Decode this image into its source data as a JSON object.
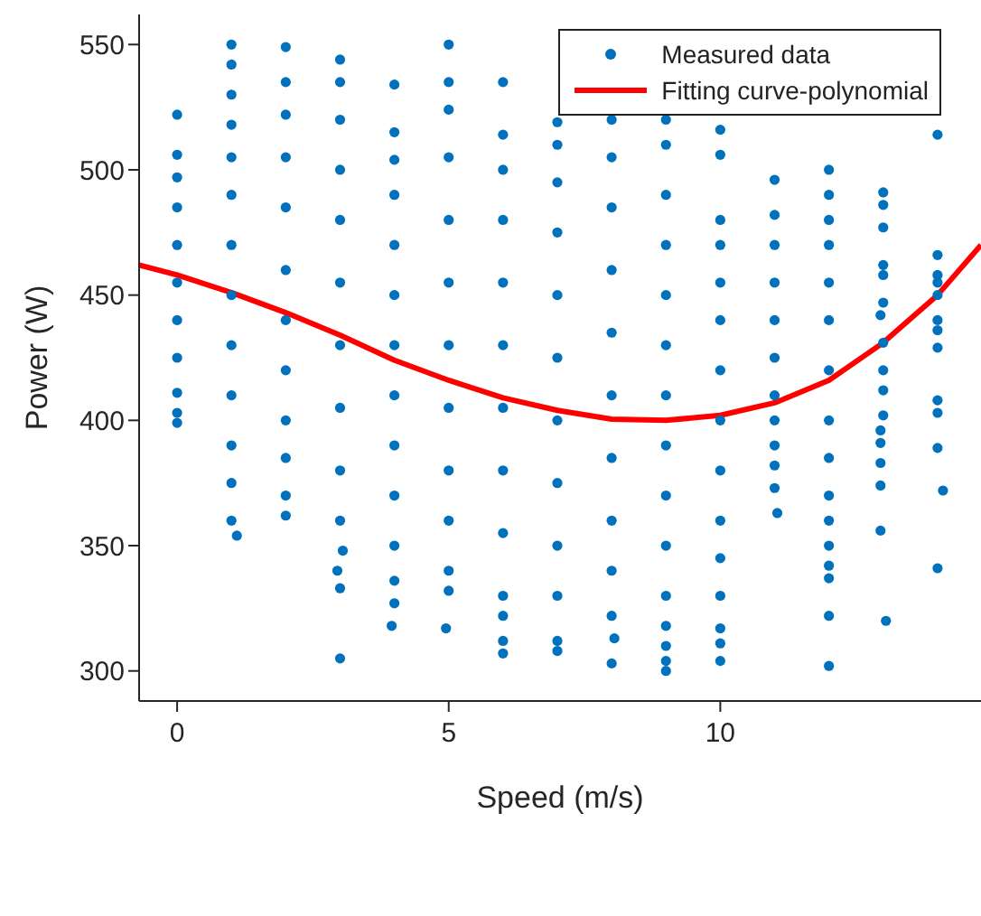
{
  "chart_data": {
    "type": "scatter",
    "xlabel": "Speed (m/s)",
    "ylabel": "Power (W)",
    "xlim": [
      -0.7,
      14.8
    ],
    "xticks": [
      0,
      5,
      10
    ],
    "ylim": [
      288,
      562
    ],
    "yticks": [
      300,
      350,
      400,
      450,
      500,
      550
    ],
    "legend": "top right",
    "line_style": "solid",
    "series": [
      {
        "name": "Measured data",
        "marker": "circle",
        "color": "#0072bd",
        "x": [
          0,
          0,
          0,
          0,
          0,
          0,
          0,
          0,
          0,
          0,
          0,
          1,
          1,
          1,
          1,
          1,
          1,
          1,
          1,
          1,
          1,
          1,
          1,
          1,
          1.1,
          2,
          2,
          2,
          2,
          2,
          2,
          2,
          2,
          2,
          2,
          2,
          2,
          3,
          3,
          3,
          3,
          3,
          3,
          3,
          3,
          3,
          3,
          3.05,
          2.95,
          3,
          3,
          4,
          4,
          4,
          4,
          4,
          4,
          4,
          4,
          4,
          4,
          4,
          4,
          4,
          3.95,
          5,
          5,
          5,
          5,
          5,
          5,
          5,
          5,
          5,
          5,
          5,
          5,
          4.95,
          6,
          6,
          6,
          6,
          6,
          6,
          6,
          6,
          6,
          6,
          6,
          6,
          6,
          7,
          7,
          7,
          7,
          7,
          7,
          7,
          7,
          7,
          7,
          7,
          7,
          8,
          8,
          8,
          8,
          8,
          8,
          8,
          8,
          8,
          8,
          8.05,
          8,
          9,
          9,
          9,
          9,
          9,
          9,
          9,
          9,
          9,
          9,
          9,
          9,
          9,
          9,
          9,
          10,
          10,
          10,
          10,
          10,
          10,
          10,
          10,
          10,
          10,
          10,
          10,
          10,
          10,
          10,
          11,
          11,
          11,
          11,
          11,
          11,
          11,
          11,
          11,
          11,
          11,
          11.05,
          12,
          12,
          12,
          12,
          12,
          12,
          12,
          12,
          12,
          12,
          12,
          12,
          12,
          12,
          12,
          12,
          13,
          13,
          13,
          13,
          13,
          13,
          12.95,
          13,
          13,
          13,
          13,
          12.95,
          12.95,
          12.95,
          12.95,
          12.95,
          13.05,
          14,
          14,
          14,
          14,
          14,
          14,
          14,
          14,
          14,
          14,
          14,
          14.1,
          14
        ],
        "values": [
          522,
          506,
          497,
          485,
          470,
          455,
          440,
          425,
          411,
          403,
          399,
          550,
          542,
          530,
          518,
          505,
          490,
          470,
          450,
          430,
          410,
          390,
          375,
          360,
          354,
          549,
          535,
          522,
          505,
          485,
          460,
          440,
          420,
          400,
          385,
          370,
          362,
          544,
          535,
          520,
          500,
          480,
          455,
          430,
          405,
          380,
          360,
          348,
          340,
          333,
          305,
          534,
          515,
          504,
          490,
          470,
          450,
          430,
          410,
          390,
          370,
          350,
          336,
          327,
          318,
          550,
          535,
          524,
          505,
          480,
          455,
          430,
          405,
          380,
          360,
          340,
          332,
          317,
          535,
          514,
          500,
          480,
          455,
          430,
          405,
          380,
          355,
          330,
          322,
          312,
          307,
          519,
          510,
          495,
          475,
          450,
          425,
          400,
          375,
          350,
          330,
          312,
          308,
          520,
          505,
          485,
          460,
          435,
          410,
          385,
          360,
          340,
          322,
          313,
          303,
          520,
          510,
          490,
          470,
          450,
          430,
          410,
          390,
          370,
          350,
          330,
          318,
          310,
          304,
          300,
          516,
          506,
          480,
          470,
          455,
          440,
          420,
          400,
          380,
          360,
          345,
          330,
          317,
          311,
          304,
          496,
          482,
          470,
          455,
          440,
          425,
          410,
          400,
          390,
          382,
          373,
          363,
          500,
          490,
          480,
          470,
          455,
          440,
          420,
          400,
          385,
          370,
          360,
          350,
          342,
          337,
          322,
          302,
          491,
          486,
          477,
          462,
          458,
          447,
          442,
          431,
          420,
          412,
          402,
          396,
          391,
          383,
          374,
          356,
          320,
          514,
          466,
          458,
          455,
          450,
          440,
          436,
          429,
          408,
          403,
          389,
          372,
          341
        ]
      },
      {
        "name": "Fitting curve-polynomial",
        "type": "line",
        "marker": "none",
        "color": "#ff0000",
        "x": [
          -0.7,
          0,
          1,
          2,
          3,
          4,
          5,
          6,
          7,
          8,
          9,
          10,
          11,
          12,
          13,
          14,
          14.8
        ],
        "values": [
          462,
          458,
          451,
          443,
          434,
          424,
          416,
          409,
          404,
          400.5,
          400,
          402,
          407,
          416,
          431,
          450,
          470
        ]
      }
    ]
  }
}
